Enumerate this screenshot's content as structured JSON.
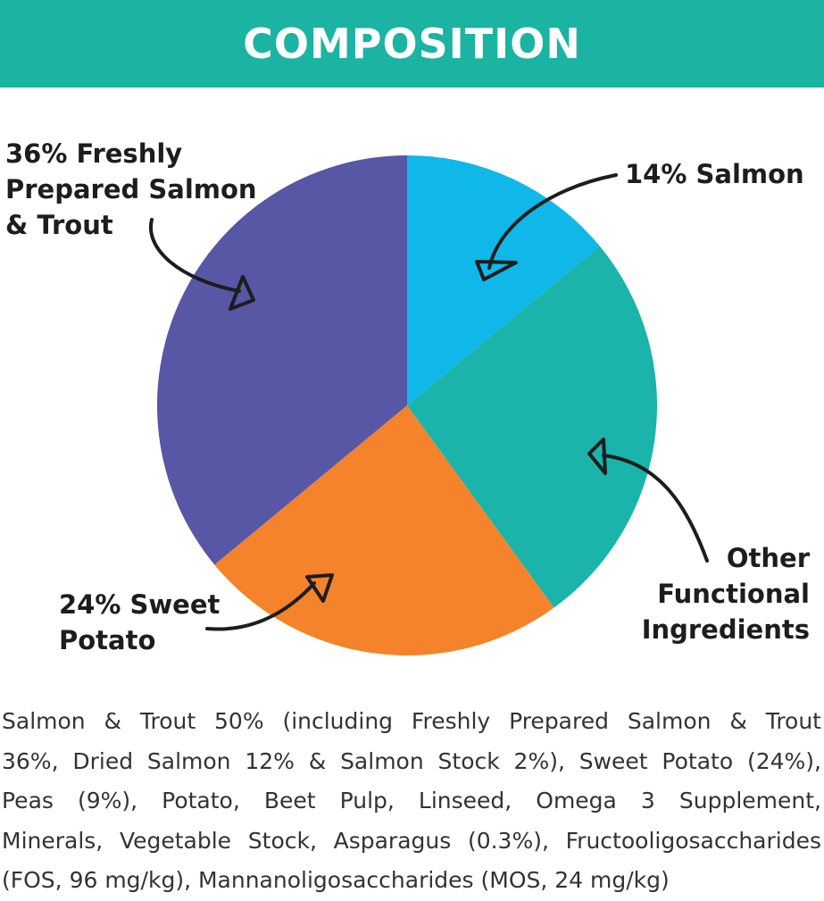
{
  "header": {
    "title": "COMPOSITION",
    "background_color": "#1bb3a2"
  },
  "chart_data": {
    "type": "pie",
    "title": "COMPOSITION",
    "start": "top, clockwise",
    "slices": [
      {
        "name": "14% Salmon",
        "label_lines": [
          "14% Salmon"
        ],
        "value": 14,
        "color": "#0fb8e8"
      },
      {
        "name": "Other Functional Ingredients",
        "label_lines": [
          "Other",
          "Functional",
          "Ingredients"
        ],
        "value": 26,
        "color": "#1ab4ab"
      },
      {
        "name": "24% Sweet Potato",
        "label_lines": [
          "24% Sweet",
          "Potato"
        ],
        "value": 24,
        "color": "#f4832b"
      },
      {
        "name": "36% Freshly Prepared Salmon & Trout",
        "label_lines": [
          "36% Freshly",
          "Prepared Salmon",
          "& Trout"
        ],
        "value": 36,
        "color": "#5757a5"
      }
    ]
  },
  "ingredients": {
    "lines": [
      "Salmon & Trout 50% (including Freshly Prepared Salmon & Trout",
      "36%, Dried Salmon 12%  & Salmon Stock 2%), Sweet Potato (24%),",
      "Peas (9%), Potato, Beet Pulp, Linseed, Omega 3 Supplement,",
      "Minerals, Vegetable Stock, Asparagus (0.3%), Fructooligosaccharides",
      "(FOS, 96 mg/kg),  Mannanoligosaccharides (MOS, 24 mg/kg)"
    ]
  }
}
